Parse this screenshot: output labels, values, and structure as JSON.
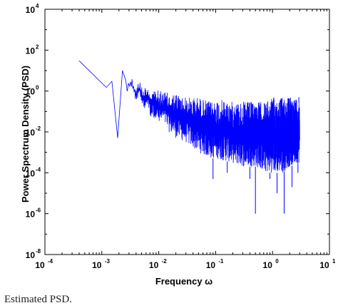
{
  "caption": "Estimated PSD.",
  "chart_data": {
    "type": "line",
    "xlabel": "Frequency ω",
    "ylabel": "Power Spectrum Density (PSD)",
    "x_scale": "log",
    "y_scale": "log",
    "xlim": [
      0.0001,
      10
    ],
    "ylim": [
      1e-08,
      10000
    ],
    "x_ticks": [
      {
        "base": "10",
        "exp": "-4"
      },
      {
        "base": "10",
        "exp": "-3"
      },
      {
        "base": "10",
        "exp": "-2"
      },
      {
        "base": "10",
        "exp": "-1"
      },
      {
        "base": "10",
        "exp": "0"
      },
      {
        "base": "10",
        "exp": "1"
      }
    ],
    "y_ticks": [
      {
        "base": "10",
        "exp": "-8"
      },
      {
        "base": "10",
        "exp": "-6"
      },
      {
        "base": "10",
        "exp": "-4"
      },
      {
        "base": "10",
        "exp": "-2"
      },
      {
        "base": "10",
        "exp": "0"
      },
      {
        "base": "10",
        "exp": "2"
      },
      {
        "base": "10",
        "exp": "4"
      }
    ],
    "grid": false,
    "series_color": "#0000ff",
    "series": [
      {
        "x": [
          0.0004,
          0.0012,
          0.0015,
          0.0019,
          0.0023,
          0.0028,
          0.0033,
          0.0039,
          0.0046,
          0.0054,
          0.0063,
          0.0072,
          0.0085,
          0.01,
          0.012,
          0.015,
          0.02,
          0.03,
          0.05,
          0.08,
          0.1,
          0.2,
          0.3,
          0.5,
          0.8,
          1.0,
          1.5,
          2.0,
          3.0
        ],
        "y": [
          30,
          1.5,
          3,
          0.005,
          10,
          2,
          5,
          1,
          2,
          0.5,
          1,
          0.2,
          0.5,
          0.1,
          0.3,
          0.05,
          0.1,
          0.02,
          0.02,
          0.01,
          0.01,
          0.01,
          0.01,
          0.01,
          0.01,
          0.01,
          0.02,
          0.03,
          0.02
        ],
        "envelope": {
          "upper": [
            30,
            1.5,
            3,
            0.005,
            10,
            3,
            5,
            2,
            3,
            1.5,
            2,
            1,
            1.5,
            1,
            1,
            0.8,
            0.8,
            0.5,
            0.5,
            0.3,
            0.4,
            0.3,
            0.3,
            0.3,
            0.3,
            0.5,
            0.5,
            0.5,
            0.5
          ],
          "lower": [
            30,
            1.5,
            3,
            0.005,
            10,
            0.8,
            1,
            0.3,
            0.5,
            0.1,
            0.2,
            0.05,
            0.05,
            0.02,
            0.03,
            0.01,
            0.005,
            0.003,
            0.001,
            0.0005,
            0.0005,
            0.0003,
            0.0002,
            0.0002,
            0.0001,
            0.0001,
            0.0001,
            0.0002,
            0.0003
          ]
        },
        "min_spikes": [
          {
            "x": 0.09,
            "y": 5e-05
          },
          {
            "x": 0.16,
            "y": 0.0001
          },
          {
            "x": 0.4,
            "y": 5e-05
          },
          {
            "x": 0.5,
            "y": 1e-06
          },
          {
            "x": 0.9,
            "y": 5e-05
          },
          {
            "x": 1.2,
            "y": 1e-05
          },
          {
            "x": 1.6,
            "y": 1e-06
          },
          {
            "x": 2.2,
            "y": 2e-05
          },
          {
            "x": 2.8,
            "y": 0.0001
          }
        ],
        "max_spikes": [
          {
            "x": 2.6,
            "y": 0.5
          },
          {
            "x": 2.9,
            "y": 0.3
          }
        ]
      }
    ]
  }
}
